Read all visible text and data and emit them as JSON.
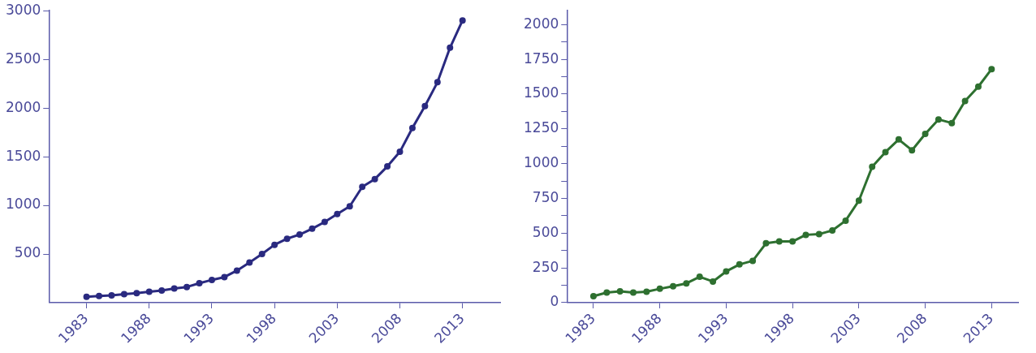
{
  "chart_data": [
    {
      "type": "line",
      "x": [
        1983,
        1984,
        1985,
        1986,
        1987,
        1988,
        1989,
        1990,
        1991,
        1992,
        1993,
        1994,
        1995,
        1996,
        1997,
        1998,
        1999,
        2000,
        2001,
        2002,
        2003,
        2004,
        2005,
        2006,
        2007,
        2008,
        2009,
        2010,
        2011,
        2012,
        2013
      ],
      "series": [
        {
          "color": "#2a2a80",
          "values": [
            60,
            68,
            75,
            87,
            98,
            113,
            125,
            145,
            161,
            200,
            234,
            263,
            330,
            413,
            500,
            595,
            657,
            700,
            760,
            830,
            910,
            990,
            1190,
            1270,
            1400,
            1550,
            1795,
            2020,
            2265,
            2620,
            2900
          ]
        }
      ],
      "xlim": [
        1980,
        2016
      ],
      "xticks": [
        1983,
        1988,
        1993,
        1998,
        2003,
        2008,
        2013
      ],
      "ylim": [
        0,
        3000
      ],
      "yticks": [
        500,
        1000,
        1500,
        2000,
        2500,
        3000
      ],
      "grid": false,
      "legend": false,
      "marker": "circle",
      "line_style": "solid"
    },
    {
      "type": "line",
      "x": [
        1983,
        1984,
        1985,
        1986,
        1987,
        1988,
        1989,
        1990,
        1991,
        1992,
        1993,
        1994,
        1995,
        1996,
        1997,
        1998,
        1999,
        2000,
        2001,
        2002,
        2003,
        2004,
        2005,
        2006,
        2007,
        2008,
        2009,
        2010,
        2011,
        2012,
        2013
      ],
      "series": [
        {
          "color": "#2e7030",
          "values": [
            47,
            73,
            81,
            73,
            79,
            100,
            118,
            139,
            186,
            152,
            225,
            275,
            301,
            427,
            440,
            440,
            488,
            493,
            519,
            590,
            734,
            978,
            1083,
            1174,
            1096,
            1214,
            1318,
            1292,
            1450,
            1554,
            1680
          ]
        }
      ],
      "xlim": [
        1981,
        2015
      ],
      "xticks": [
        1983,
        1988,
        1993,
        1998,
        2003,
        2008,
        2013
      ],
      "ylim": [
        0,
        2100
      ],
      "yticks": [
        0,
        {
          "value": 125,
          "label": null
        },
        250,
        {
          "value": 375,
          "label": null
        },
        500,
        {
          "value": 625,
          "label": null
        },
        750,
        {
          "value": 875,
          "label": null
        },
        1000,
        {
          "value": 1125,
          "label": null
        },
        1250,
        {
          "value": 1375,
          "label": null
        },
        1500,
        {
          "value": 1625,
          "label": null
        },
        1750,
        {
          "value": 1875,
          "label": null
        },
        2000
      ],
      "grid": false,
      "legend": false,
      "marker": "circle",
      "line_style": "solid"
    }
  ]
}
